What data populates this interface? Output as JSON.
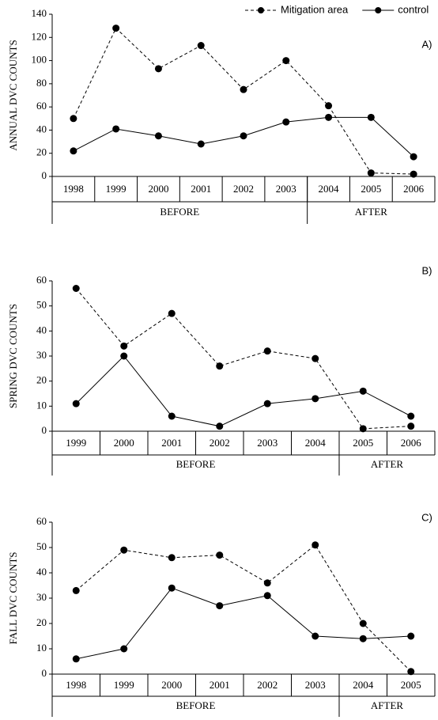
{
  "chart_data": [
    {
      "type": "line",
      "ylabel": "ANNUAL DVC COUNTS",
      "panel_label": "A)",
      "categories": [
        "1998",
        "1999",
        "2000",
        "2001",
        "2002",
        "2003",
        "2004",
        "2005",
        "2006"
      ],
      "groups": [
        {
          "label": "BEFORE",
          "count": 6
        },
        {
          "label": "AFTER",
          "count": 3
        }
      ],
      "series": [
        {
          "name": "Mitigation area",
          "color": "#000000",
          "dashed": true,
          "values": [
            50,
            128,
            93,
            113,
            75,
            100,
            61,
            3,
            2
          ]
        },
        {
          "name": "control",
          "color": "#000000",
          "dashed": false,
          "values": [
            22,
            41,
            35,
            28,
            35,
            47,
            51,
            51,
            17
          ]
        }
      ],
      "ylim": [
        0,
        140
      ],
      "yticks": [
        0,
        20,
        40,
        60,
        80,
        100,
        120,
        140
      ]
    },
    {
      "type": "line",
      "ylabel": "SPRING DVC COUNTS",
      "panel_label": "B)",
      "categories": [
        "1999",
        "2000",
        "2001",
        "2002",
        "2003",
        "2004",
        "2005",
        "2006"
      ],
      "groups": [
        {
          "label": "BEFORE",
          "count": 6
        },
        {
          "label": "AFTER",
          "count": 2
        }
      ],
      "series": [
        {
          "color": "#000000",
          "dashed": true,
          "values": [
            57,
            34,
            47,
            26,
            32,
            29,
            1,
            2
          ]
        },
        {
          "color": "#000000",
          "dashed": false,
          "values": [
            11,
            30,
            6,
            2,
            11,
            13,
            16,
            6
          ]
        }
      ],
      "ylim": [
        0,
        60
      ],
      "yticks": [
        0,
        10,
        20,
        30,
        40,
        50,
        60
      ]
    },
    {
      "type": "line",
      "ylabel": "FALL DVC COUNTS",
      "panel_label": "C)",
      "categories": [
        "1998",
        "1999",
        "2000",
        "2001",
        "2002",
        "2003",
        "2004",
        "2005"
      ],
      "groups": [
        {
          "label": "BEFORE",
          "count": 6
        },
        {
          "label": "AFTER",
          "count": 2
        }
      ],
      "series": [
        {
          "color": "#000000",
          "dashed": true,
          "values": [
            33,
            49,
            46,
            47,
            36,
            51,
            20,
            1
          ]
        },
        {
          "color": "#000000",
          "dashed": false,
          "values": [
            6,
            10,
            34,
            27,
            31,
            15,
            14,
            15
          ]
        }
      ],
      "ylim": [
        0,
        60
      ],
      "yticks": [
        0,
        10,
        20,
        30,
        40,
        50,
        60
      ]
    }
  ]
}
